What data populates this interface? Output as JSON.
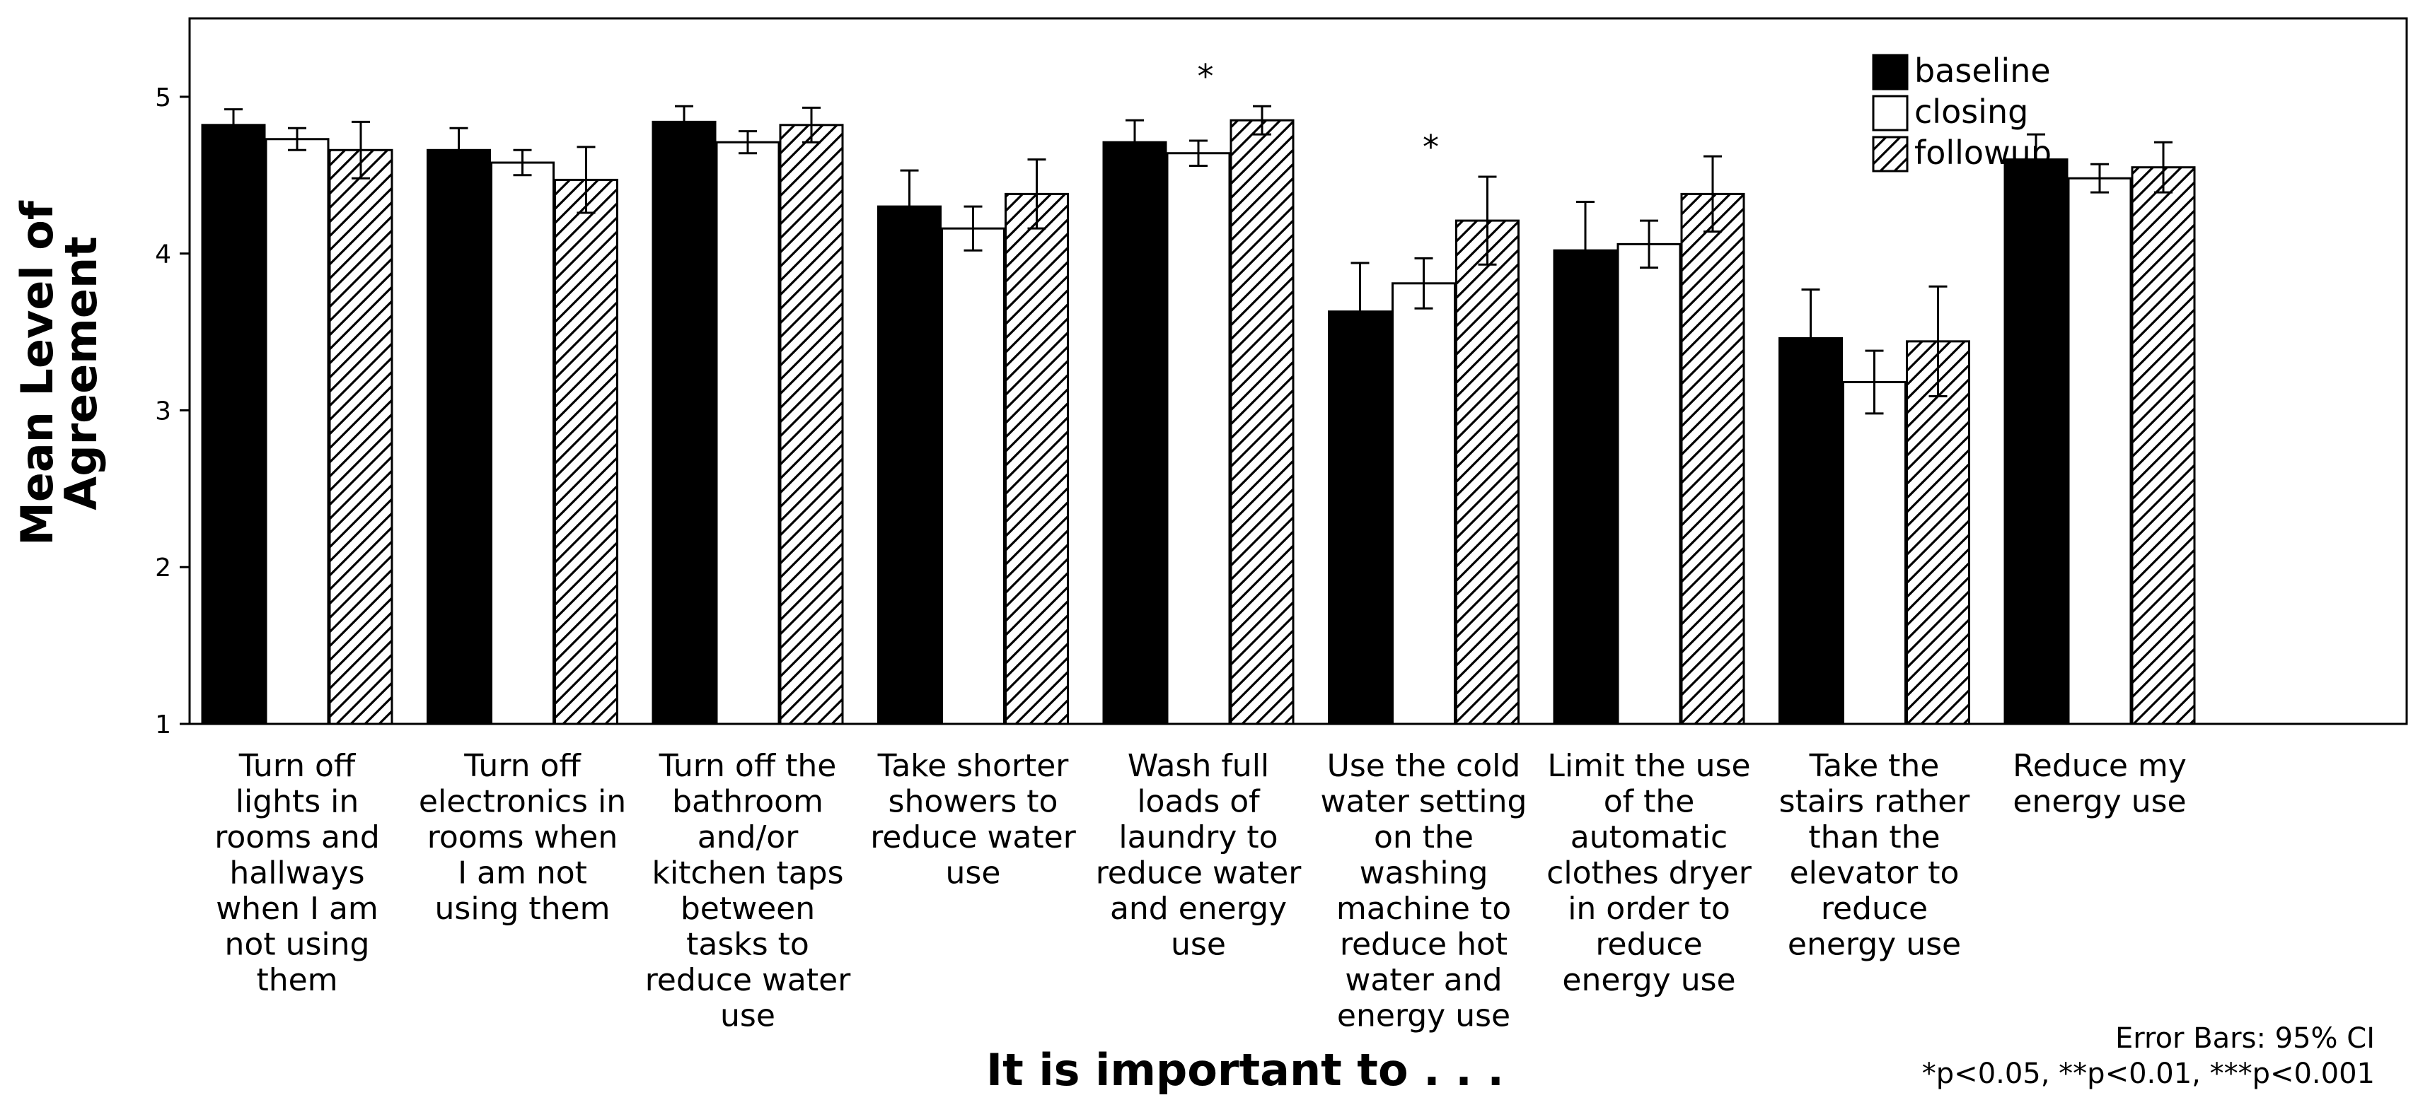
{
  "chart_data": {
    "type": "bar",
    "title": "",
    "xlabel": "It is important to . . .",
    "ylabel": [
      "Mean Level of",
      "Agreement"
    ],
    "ylim": [
      1,
      5.5
    ],
    "yticks": [
      1,
      2,
      3,
      4,
      5
    ],
    "categories": [
      [
        "Turn off",
        "lights in",
        "rooms and",
        "hallways",
        "when I am",
        "not using",
        "them"
      ],
      [
        "Turn off",
        "electronics in",
        "rooms when",
        "I am not",
        "using them"
      ],
      [
        "Turn off the",
        "bathroom",
        "and/or",
        "kitchen taps",
        "between",
        "tasks to",
        "reduce water",
        "use"
      ],
      [
        "Take shorter",
        "showers to",
        "reduce water",
        "use"
      ],
      [
        "Wash full",
        "loads of",
        "laundry to",
        "reduce water",
        "and energy",
        "use"
      ],
      [
        "Use the cold",
        "water setting",
        "on the",
        "washing",
        "machine to",
        "reduce hot",
        "water and",
        "energy use"
      ],
      [
        "Limit the use",
        "of the",
        "automatic",
        "clothes dryer",
        "in order to",
        "reduce",
        "energy use"
      ],
      [
        "Take the",
        "stairs rather",
        "than the",
        "elevator to",
        "reduce",
        "energy use"
      ],
      [
        "Reduce my",
        "energy use"
      ]
    ],
    "series": [
      {
        "name": "baseline",
        "style": "solid",
        "values": [
          4.82,
          4.66,
          4.84,
          4.3,
          4.71,
          3.63,
          4.02,
          3.46,
          4.6
        ],
        "ci_low": [
          4.72,
          4.52,
          4.74,
          4.07,
          4.57,
          3.32,
          3.71,
          3.15,
          4.44
        ],
        "ci_high": [
          4.92,
          4.8,
          4.94,
          4.53,
          4.85,
          3.94,
          4.33,
          3.77,
          4.76
        ]
      },
      {
        "name": "closing",
        "style": "open",
        "values": [
          4.73,
          4.58,
          4.71,
          4.16,
          4.64,
          3.81,
          4.06,
          3.18,
          4.48
        ],
        "ci_low": [
          4.66,
          4.5,
          4.64,
          4.02,
          4.56,
          3.65,
          3.91,
          2.98,
          4.39
        ],
        "ci_high": [
          4.8,
          4.66,
          4.78,
          4.3,
          4.72,
          3.97,
          4.21,
          3.38,
          4.57
        ]
      },
      {
        "name": "followup",
        "style": "hatched",
        "values": [
          4.66,
          4.47,
          4.82,
          4.38,
          4.85,
          4.21,
          4.38,
          3.44,
          4.55
        ],
        "ci_low": [
          4.48,
          4.26,
          4.71,
          4.16,
          4.76,
          3.93,
          4.14,
          3.09,
          4.39
        ],
        "ci_high": [
          4.84,
          4.68,
          4.93,
          4.6,
          4.94,
          4.49,
          4.62,
          3.79,
          4.71
        ]
      }
    ],
    "annotations": [
      {
        "text": "*",
        "category_index": 4,
        "series_index": 1
      },
      {
        "text": "*",
        "category_index": 5,
        "series_index": 1
      }
    ],
    "legend": "top-right",
    "grid": false,
    "footnotes": [
      "Error Bars: 95% CI",
      "*p<0.05, **p<0.01, ***p<0.001"
    ]
  },
  "colors": {
    "bar_solid": "#000000",
    "bar_open": "#ffffff",
    "hatch": "#000000",
    "axis": "#000000",
    "background": "#ffffff"
  }
}
